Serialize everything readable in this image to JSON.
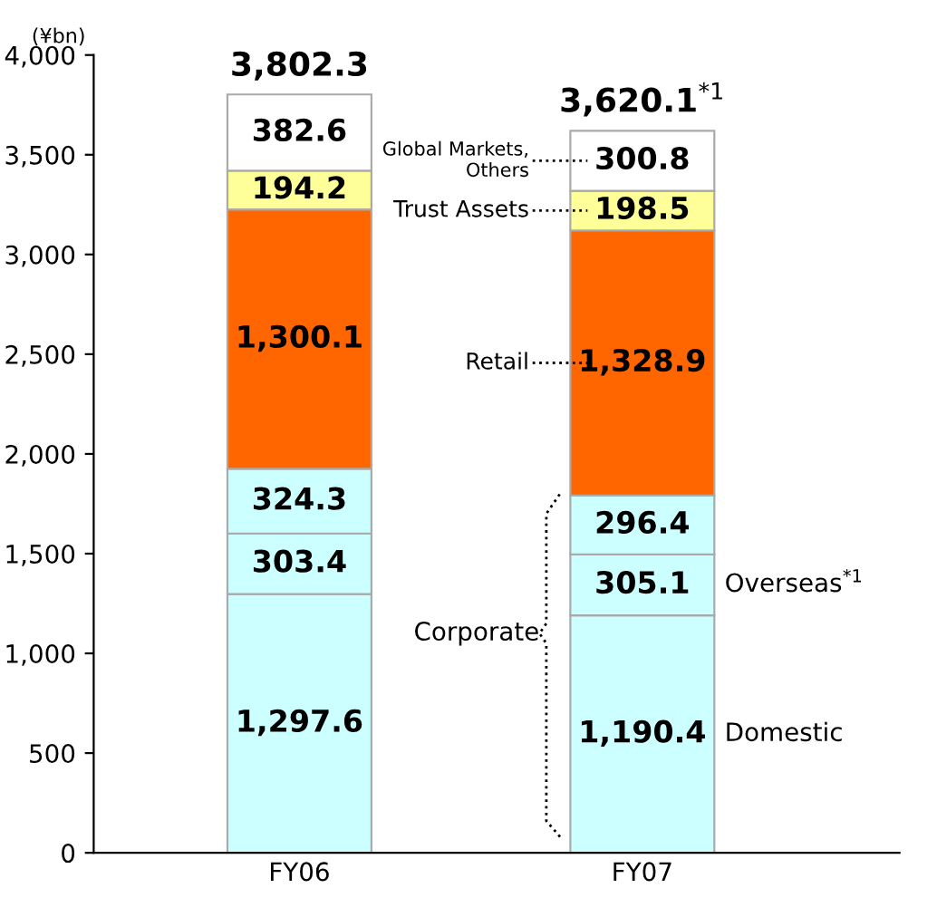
{
  "chart_data": {
    "type": "bar",
    "stacked": true,
    "ylabel": "(¥bn)",
    "categories": [
      "FY06",
      "FY07"
    ],
    "series": [
      {
        "name": "Domestic",
        "color": "#ccffff",
        "values": [
          1297.6,
          1190.4
        ],
        "value_labels": [
          "1,297.6",
          "1,190.4"
        ]
      },
      {
        "name": "Overseas$^{*1}$",
        "color": "#ccffff",
        "values": [
          303.4,
          305.1
        ],
        "value_labels": [
          "303.4",
          "305.1"
        ]
      },
      {
        "color": "#ccffff",
        "values": [
          324.3,
          296.4
        ],
        "value_labels": [
          "324.3",
          "296.4"
        ]
      },
      {
        "name": "Retail",
        "color": "#ff6600",
        "values": [
          1300.1,
          1328.9
        ],
        "value_labels": [
          "1,300.1",
          "1,328.9"
        ]
      },
      {
        "name": "Trust Assets",
        "color": "#ffff99",
        "values": [
          194.2,
          198.5
        ],
        "value_labels": [
          "194.2",
          "198.5"
        ]
      },
      {
        "name": "Global Markets,\nOthers",
        "color": "#ffffff",
        "values": [
          382.6,
          300.8
        ],
        "value_labels": [
          "382.6",
          "300.8"
        ]
      }
    ],
    "totals": [
      "3,802.3",
      "3,620.1$^{*1}$"
    ],
    "annotations": [
      "Corporate"
    ],
    "ylim": [
      0,
      4000
    ],
    "yticks": [
      0,
      500,
      {
        "value": 1000,
        "label": "1,000"
      },
      {
        "value": 1500,
        "label": "1,500"
      },
      {
        "value": 2000,
        "label": "2,000"
      },
      {
        "value": 2500,
        "label": "2,500"
      },
      {
        "value": 3000,
        "label": "3,000"
      },
      {
        "value": 3500,
        "label": "3,500"
      },
      {
        "value": 4000,
        "label": "4,000"
      }
    ],
    "grid": false
  }
}
